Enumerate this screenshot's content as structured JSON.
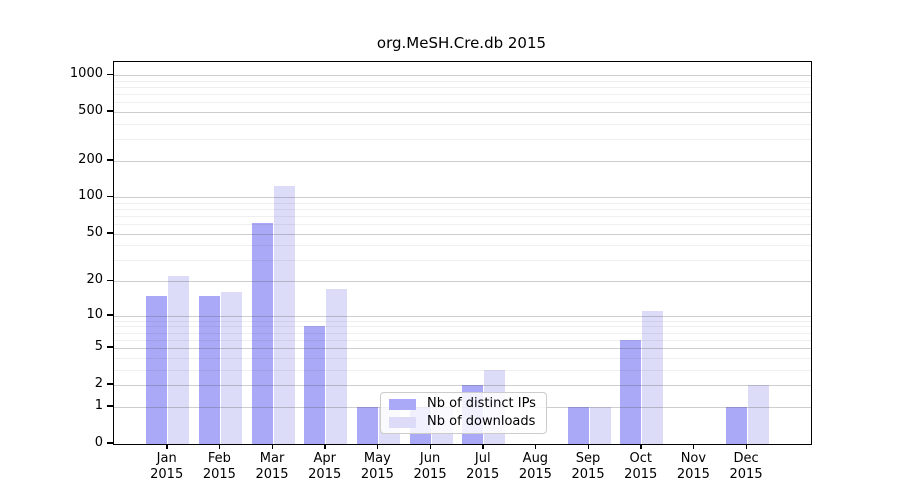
{
  "title": "org.MeSH.Cre.db 2015",
  "chart_data": {
    "type": "bar",
    "title": "org.MeSH.Cre.db 2015",
    "scale": "log1p",
    "grid": "on",
    "categories": [
      "Jan",
      "Feb",
      "Mar",
      "Apr",
      "May",
      "Jun",
      "Jul",
      "Aug",
      "Sep",
      "Oct",
      "Nov",
      "Dec"
    ],
    "year_label": "2015",
    "series": [
      {
        "name": "Nb of distinct IPs",
        "color": "#a9a9f7",
        "values": [
          15,
          15,
          62,
          8,
          1,
          1,
          2,
          0,
          1,
          6,
          0,
          1
        ]
      },
      {
        "name": "Nb of downloads",
        "color": "#dcdcf9",
        "values": [
          22,
          16,
          123,
          17,
          1,
          1,
          3,
          0,
          1,
          11,
          0,
          2
        ]
      }
    ],
    "xlabel": "",
    "ylabel": "",
    "ylim": [
      0,
      1267
    ],
    "y_ticks": [
      0,
      1,
      2,
      5,
      10,
      20,
      50,
      100,
      200,
      500,
      1000
    ],
    "y_minor_ticks": [
      3,
      4,
      6,
      7,
      8,
      9,
      30,
      40,
      60,
      70,
      80,
      90,
      300,
      400,
      600,
      700,
      800,
      900
    ],
    "legend": {
      "position": "inside-bottom-center",
      "items": [
        "Nb of distinct IPs",
        "Nb of downloads"
      ]
    }
  }
}
